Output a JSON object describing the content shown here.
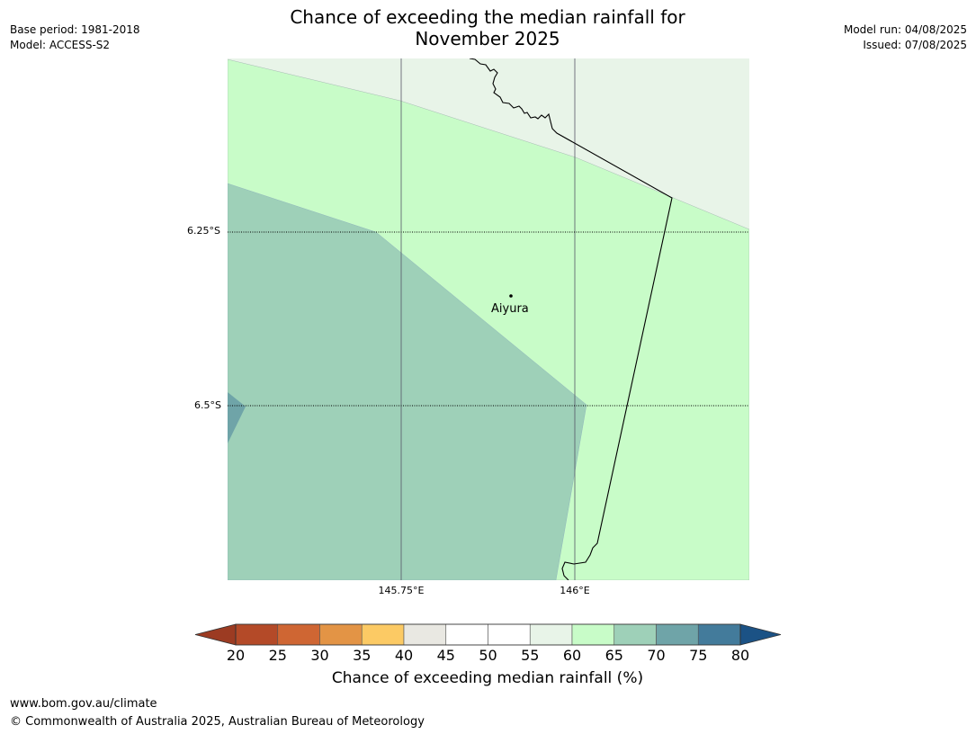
{
  "title_line1": "Chance of exceeding the median rainfall for",
  "title_line2": "November 2025",
  "meta_left": {
    "base_period": "Base period: 1981-2018",
    "model": "Model: ACCESS-S2"
  },
  "meta_right": {
    "model_run": "Model run: 04/08/2025",
    "issued": "Issued: 07/08/2025"
  },
  "map": {
    "place_name": "Aiyura",
    "lat_labels": [
      "6.25°S",
      "6.5°S"
    ],
    "lon_labels": [
      "145.75°E",
      "146°E"
    ],
    "colors": {
      "band_55_60": "#e8f4e8",
      "band_60_65": "#c8fcc8",
      "band_65_70": "#9ed0b8",
      "band_70_75": "#6fa4a8"
    }
  },
  "colorbar": {
    "title": "Chance of exceeding median rainfall (%)",
    "ticks": [
      "20",
      "25",
      "30",
      "35",
      "40",
      "45",
      "50",
      "55",
      "60",
      "65",
      "70",
      "75",
      "80"
    ],
    "low_extend_color": "#9c3b22",
    "high_extend_color": "#1b5285",
    "bin_colors": [
      "#b44a28",
      "#cf6633",
      "#e39445",
      "#fcca64",
      "#e9e8e2",
      "#ffffff",
      "#ffffff",
      "#e8f4e8",
      "#c8fcc8",
      "#9ed0b8",
      "#6fa4a8",
      "#437b9b"
    ]
  },
  "footer": {
    "url": "www.bom.gov.au/climate",
    "copyright": "© Commonwealth of Australia 2025, Australian Bureau of Meteorology"
  }
}
